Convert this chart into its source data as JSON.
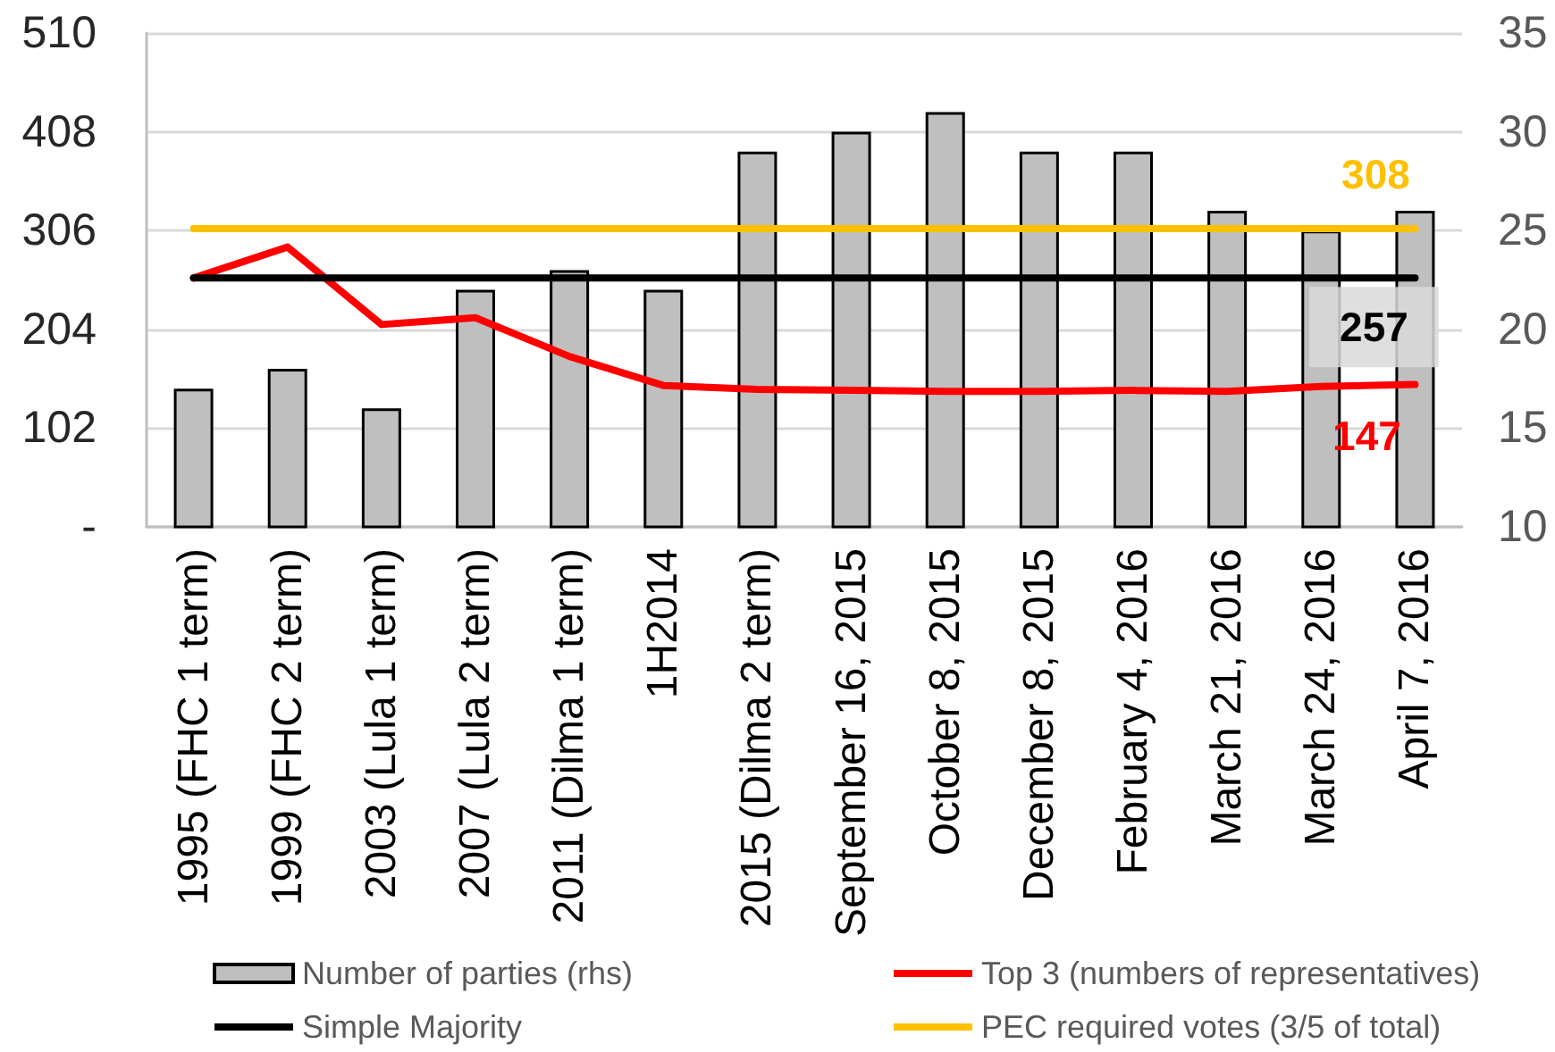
{
  "chart_data": {
    "type": "bar",
    "categories": [
      "1995 (FHC 1 term)",
      "1999 (FHC 2 term)",
      "2003 (Lula 1 term)",
      "2007 (Lula 2 term)",
      "2011 (Dilma 1 term)",
      "1H2014",
      "2015 (Dilma 2 term)",
      "September 16, 2015",
      "October 8, 2015",
      "December 8, 2015",
      "February 4, 2016",
      "March 21, 2016",
      "March 24, 2016",
      "April 7, 2016"
    ],
    "series": [
      {
        "name": "Number of parties (rhs)",
        "axis": "y2",
        "color": "#bfbfbf",
        "values": [
          17,
          18,
          16,
          22,
          23,
          22,
          29,
          30,
          31,
          29,
          29,
          26,
          25,
          26
        ]
      },
      {
        "name": "Top 3 (numbers of representatives)",
        "type": "line",
        "color": "#ff0000",
        "values": [
          257,
          289,
          209,
          216,
          176,
          146,
          142,
          141,
          140,
          140,
          141,
          140,
          145,
          147
        ],
        "value_labels": [
          null,
          null,
          null,
          null,
          null,
          null,
          null,
          null,
          null,
          null,
          null,
          null,
          null,
          "147"
        ]
      },
      {
        "name": "Simple Majority",
        "type": "line",
        "color": "#000000",
        "values": [
          257,
          257,
          257,
          257,
          257,
          257,
          257,
          257,
          257,
          257,
          257,
          257,
          257,
          257
        ],
        "value_labels": [
          null,
          null,
          null,
          null,
          null,
          null,
          null,
          null,
          null,
          null,
          null,
          null,
          null,
          "257"
        ]
      },
      {
        "name": "PEC required votes (3/5 of total)",
        "type": "line",
        "color": "#ffc000",
        "values": [
          308,
          308,
          308,
          308,
          308,
          308,
          308,
          308,
          308,
          308,
          308,
          308,
          308,
          308
        ],
        "value_labels": [
          null,
          null,
          null,
          null,
          null,
          null,
          null,
          null,
          null,
          null,
          null,
          null,
          null,
          "308"
        ]
      }
    ],
    "ylim": [
      0,
      510
    ],
    "yticks": [
      {
        "value": 0,
        "label": "-"
      },
      102,
      204,
      306,
      408,
      510
    ],
    "y2lim": [
      10,
      35
    ],
    "y2ticks": [
      10,
      15,
      20,
      25,
      30,
      35
    ],
    "grid": "y",
    "legend": "bottom",
    "marker": "none",
    "line_style": "solid"
  }
}
